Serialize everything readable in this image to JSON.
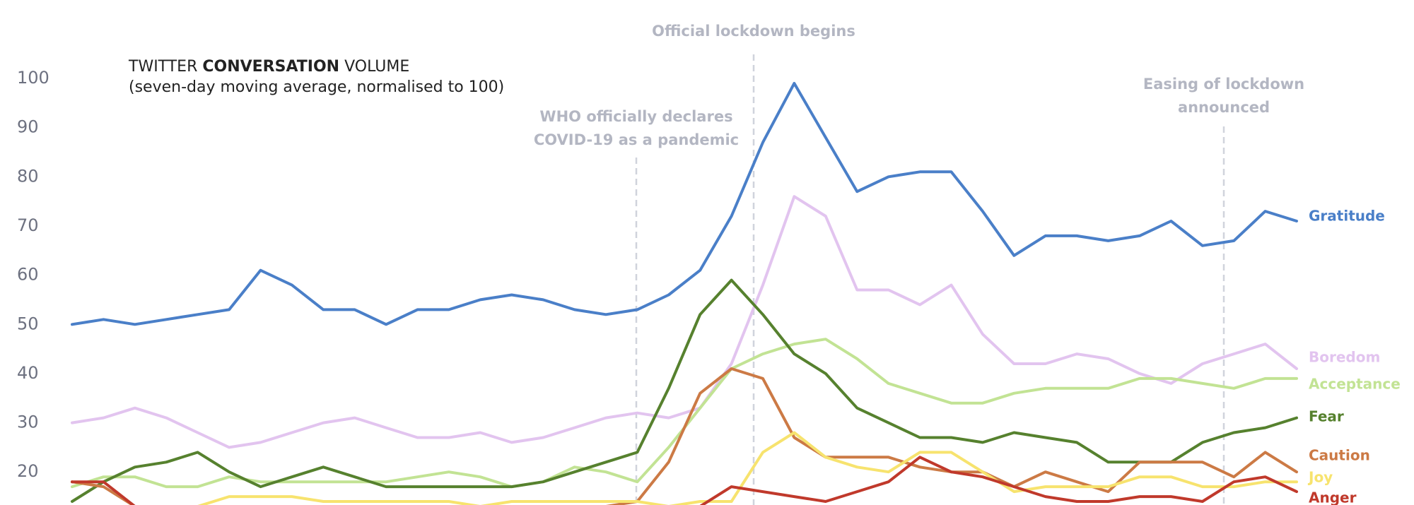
{
  "chart_data": {
    "type": "line",
    "title": {
      "prefix": "TWITTER",
      "emphasis": "CONVERSATION",
      "suffix": "VOLUME"
    },
    "subtitle": "(seven-day moving average, normalised to 100)",
    "annotations": [
      {
        "lines": [
          "WHO officially declares",
          "COVID-19 as a pandemic"
        ]
      },
      {
        "lines": [
          "Official lockdown begins"
        ]
      },
      {
        "lines": [
          "Easing of lockdown",
          "announced"
        ]
      }
    ],
    "categories": [
      null,
      null,
      null,
      null,
      null,
      null,
      null,
      null,
      null,
      null,
      null,
      null,
      null,
      null,
      null,
      null,
      null,
      null,
      null,
      null,
      null,
      null,
      null,
      null,
      null,
      null,
      null,
      null,
      null,
      null,
      null,
      null,
      null,
      null,
      null,
      null,
      null,
      null,
      null,
      null
    ],
    "ylim": [
      13,
      100
    ],
    "yticks": [
      20,
      30,
      40,
      50,
      60,
      70,
      80,
      90,
      100
    ],
    "grid": false,
    "series": [
      {
        "name": "Gratitude",
        "color": "#4a7fc8",
        "values": [
          50,
          51,
          50,
          51,
          52,
          53,
          61,
          58,
          53,
          53,
          50,
          53,
          53,
          55,
          56,
          55,
          53,
          52,
          53,
          56,
          61,
          72,
          87,
          99,
          88,
          77,
          80,
          81,
          81,
          73,
          64,
          68,
          68,
          67,
          68,
          71,
          66,
          67,
          73,
          71
        ]
      },
      {
        "name": "Boredom",
        "color": "#e2c4ef",
        "values": [
          30,
          31,
          33,
          31,
          28,
          25,
          26,
          28,
          30,
          31,
          29,
          27,
          27,
          28,
          26,
          27,
          29,
          31,
          32,
          31,
          33,
          42,
          58,
          76,
          72,
          57,
          57,
          54,
          58,
          48,
          42,
          42,
          44,
          43,
          40,
          38,
          42,
          44,
          46,
          41
        ]
      },
      {
        "name": "Acceptance",
        "color": "#c2e394",
        "values": [
          17,
          19,
          19,
          17,
          17,
          19,
          18,
          18,
          18,
          18,
          18,
          19,
          20,
          19,
          17,
          18,
          21,
          20,
          18,
          25,
          33,
          41,
          44,
          46,
          47,
          43,
          38,
          36,
          34,
          34,
          36,
          37,
          37,
          37,
          39,
          39,
          38,
          37,
          39,
          39
        ]
      },
      {
        "name": "Fear",
        "color": "#56812e",
        "values": [
          14,
          18,
          21,
          22,
          24,
          20,
          17,
          19,
          21,
          19,
          17,
          17,
          17,
          17,
          17,
          18,
          20,
          22,
          24,
          37,
          52,
          59,
          52,
          44,
          40,
          33,
          30,
          27,
          27,
          26,
          28,
          27,
          26,
          22,
          22,
          22,
          26,
          28,
          29,
          31
        ]
      },
      {
        "name": "Caution",
        "color": "#cc7a45",
        "values": [
          18,
          17,
          13,
          13,
          13,
          13,
          13,
          13,
          13,
          13,
          13,
          13,
          13,
          13,
          13,
          13,
          13,
          13,
          14,
          22,
          36,
          41,
          39,
          27,
          23,
          23,
          23,
          21,
          20,
          20,
          17,
          20,
          18,
          16,
          22,
          22,
          22,
          19,
          24,
          20
        ]
      },
      {
        "name": "Joy",
        "color": "#f7e36e",
        "values": [
          13,
          13,
          13,
          13,
          13,
          15,
          15,
          15,
          14,
          14,
          14,
          14,
          14,
          13,
          14,
          14,
          14,
          14,
          14,
          13,
          14,
          14,
          24,
          28,
          23,
          21,
          20,
          24,
          24,
          20,
          16,
          17,
          17,
          17,
          19,
          19,
          17,
          17,
          18,
          18
        ]
      },
      {
        "name": "Anger",
        "color": "#c0392b",
        "values": [
          18,
          18,
          13,
          13,
          13,
          13,
          13,
          13,
          13,
          13,
          13,
          13,
          13,
          13,
          13,
          13,
          13,
          13,
          13,
          13,
          13,
          17,
          16,
          15,
          14,
          16,
          18,
          23,
          20,
          19,
          17,
          15,
          14,
          14,
          15,
          15,
          14,
          18,
          19,
          16
        ]
      }
    ]
  }
}
